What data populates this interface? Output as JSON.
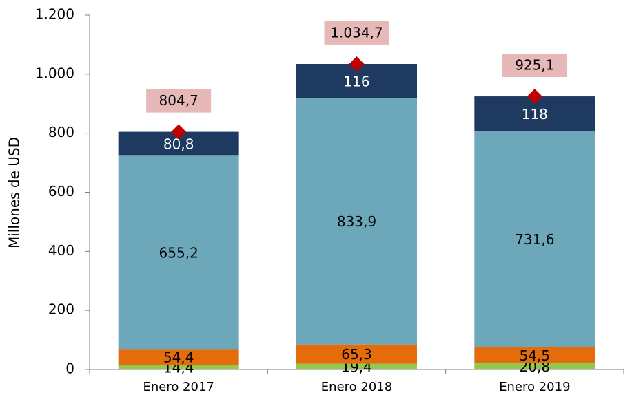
{
  "chart_data": {
    "type": "stacked_bar",
    "y_label": "Millones de  USD",
    "categories": [
      "Enero 2017",
      "Enero 2018",
      "Enero 2019"
    ],
    "series": [
      {
        "color": "#92c94c",
        "values": [
          14.4,
          19.4,
          20.8
        ],
        "value_labels": [
          "14,4",
          "19,4",
          "20,8"
        ]
      },
      {
        "color": "#e46c0a",
        "values": [
          54.4,
          65.3,
          54.5
        ],
        "value_labels": [
          "54,4",
          "65,3",
          "54,5"
        ]
      },
      {
        "color": "#6ca8b9",
        "values": [
          655.2,
          833.9,
          731.6
        ],
        "value_labels": [
          "655,2",
          "833,9",
          "731,6"
        ]
      },
      {
        "color": "#1f3a60",
        "values": [
          80.8,
          116,
          118
        ],
        "value_labels": [
          "80,8",
          "116",
          "118"
        ]
      }
    ],
    "totals": {
      "color": "#c00000",
      "label_color": "#e6b9b8",
      "values": [
        804.7,
        1034.7,
        925.1
      ],
      "value_labels": [
        "804,7",
        "1.034,7",
        "925,1"
      ]
    },
    "ylim": [
      0,
      1200
    ],
    "yticks": [
      0,
      200,
      400,
      600,
      800,
      {
        "value": 1000,
        "label": "1.000"
      },
      {
        "value": 1200,
        "label": "1.200"
      }
    ]
  }
}
